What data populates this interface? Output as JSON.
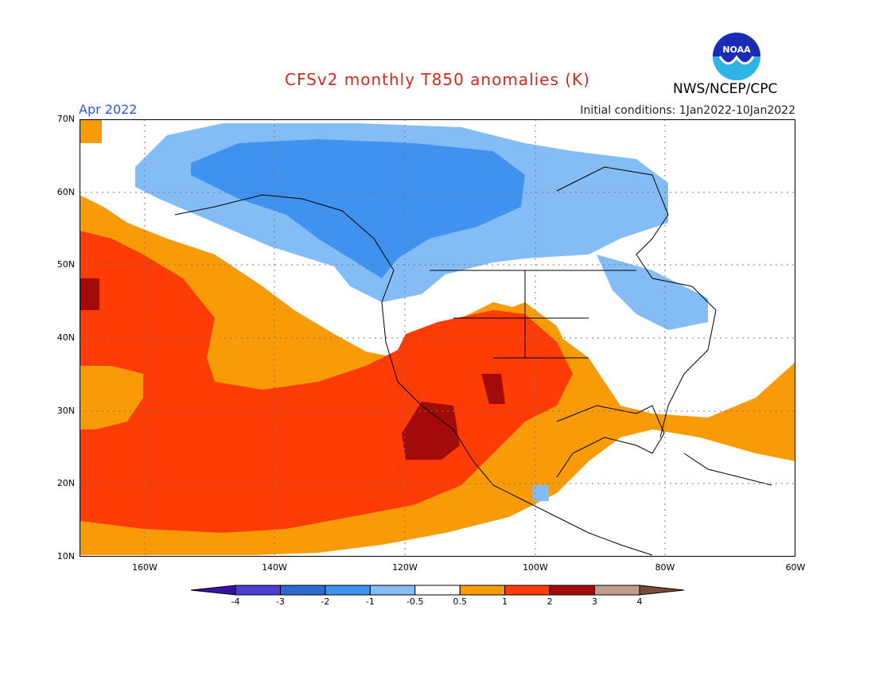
{
  "title": "CFSv2 monthly T850 anomalies (K)",
  "month": "Apr 2022",
  "initial_conditions": "Initial conditions: 1Jan2022-10Jan2022",
  "agency": "NWS/NCEP/CPC",
  "logo_text": "NOAA",
  "lat_labels": [
    "70N",
    "60N",
    "50N",
    "40N",
    "30N",
    "20N",
    "10N"
  ],
  "lon_labels": [
    "160W",
    "140W",
    "120W",
    "100W",
    "80W",
    "60W"
  ],
  "colorbar_labels": [
    "-4",
    "-3",
    "-2",
    "-1",
    "-0.5",
    "0.5",
    "1",
    "2",
    "3",
    "4"
  ],
  "colorbar_colors": [
    "#3a0fa3",
    "#4a3fd0",
    "#2d6ad6",
    "#3f93ee",
    "#84bdf5",
    "#ffffff",
    "#f99b07",
    "#ff3c05",
    "#a30a0a",
    "#c29b8f",
    "#7a4a38"
  ],
  "map_regions": {
    "extent": {
      "lon": [
        -170,
        -60
      ],
      "lat": [
        10,
        70
      ]
    },
    "anomaly_classes": [
      "-2 to -1",
      "-1 to -0.5",
      "0.5 to 1",
      "1 to 2",
      "2 to 3"
    ],
    "regions": [
      {
        "label": "Alaska / Northwest Canada",
        "class": "-2 to -1"
      },
      {
        "label": "Hudson Bay / Canada",
        "class": "-1 to -0.5"
      },
      {
        "label": "Great Lakes / Northeast US",
        "class": "-1 to -0.5"
      },
      {
        "label": "Eastern Pacific subtropics",
        "class": "1 to 2"
      },
      {
        "label": "Southwest US / Mexico",
        "class": "1 to 2"
      },
      {
        "label": "Baja California",
        "class": "2 to 3"
      },
      {
        "label": "Gulf of Mexico / Western Atlantic",
        "class": "0.5 to 1"
      }
    ]
  }
}
